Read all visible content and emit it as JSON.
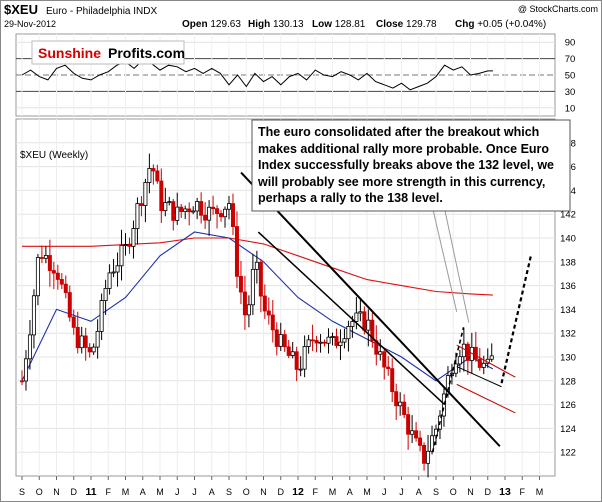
{
  "header": {
    "symbol": "$XEU",
    "name": "Euro - Philadelphia INDX",
    "date": "29-Nov-2012",
    "credit": "@ StockCharts.com",
    "quote": [
      {
        "label": "Open",
        "value": "129.63"
      },
      {
        "label": "High",
        "value": "130.13"
      },
      {
        "label": "Low",
        "value": "128.81"
      },
      {
        "label": "Close",
        "value": "129.78"
      },
      {
        "label": "Chg",
        "value": "+0.05 (+0.04%)"
      }
    ]
  },
  "logo": {
    "part1": "Sunshine",
    "part2": "Profits.com"
  },
  "rsi_panel": {
    "levels": [
      90,
      70,
      50,
      30,
      10
    ],
    "ylim": [
      0,
      100
    ],
    "highlight_lines": [
      70,
      30
    ],
    "midline": 50
  },
  "price_panel": {
    "label": "$XEU (Weekly)",
    "annotation": "The euro  consolidated after the breakout which makes additional rally more probable. Once Euro Index successfully breaks above the 132 level, we will probably see more strength in this currency, perhaps a rally to the 138 level.",
    "colors": {
      "up": "#000000",
      "down": "#cc0000",
      "ma_fast": "#1f2fb0",
      "ma_slow": "#dd1111",
      "trend": "#000000",
      "channel": "#cc0000"
    }
  },
  "chart_data": {
    "type": "candlestick",
    "title": "$XEU Euro - Philadelphia INDX (Weekly)",
    "x_months": [
      "S",
      "O",
      "N",
      "D",
      "11",
      "F",
      "M",
      "A",
      "M",
      "J",
      "J",
      "A",
      "S",
      "O",
      "N",
      "D",
      "12",
      "F",
      "M",
      "A",
      "M",
      "J",
      "J",
      "A",
      "S",
      "O",
      "N",
      "D",
      "13",
      "F",
      "M"
    ],
    "ylim": [
      120,
      150
    ],
    "yticks": [
      122,
      124,
      126,
      128,
      130,
      132,
      134,
      136,
      138,
      140,
      142,
      144,
      146,
      148
    ],
    "anchors": [
      {
        "m": 0,
        "v": 128
      },
      {
        "m": 0.5,
        "v": 133
      },
      {
        "m": 1,
        "v": 139
      },
      {
        "m": 2,
        "v": 137.5
      },
      {
        "m": 3,
        "v": 132
      },
      {
        "m": 4,
        "v": 130
      },
      {
        "m": 4.5,
        "v": 133
      },
      {
        "m": 5,
        "v": 137
      },
      {
        "m": 6,
        "v": 139
      },
      {
        "m": 7,
        "v": 144
      },
      {
        "m": 7.5,
        "v": 146.5
      },
      {
        "m": 8,
        "v": 143
      },
      {
        "m": 9,
        "v": 142
      },
      {
        "m": 10,
        "v": 143
      },
      {
        "m": 11,
        "v": 142
      },
      {
        "m": 12,
        "v": 143
      },
      {
        "m": 12.5,
        "v": 137
      },
      {
        "m": 13,
        "v": 133
      },
      {
        "m": 13.5,
        "v": 138
      },
      {
        "m": 14,
        "v": 134
      },
      {
        "m": 15,
        "v": 131
      },
      {
        "m": 16,
        "v": 129
      },
      {
        "m": 17,
        "v": 132
      },
      {
        "m": 18,
        "v": 131
      },
      {
        "m": 19,
        "v": 133
      },
      {
        "m": 20,
        "v": 133
      },
      {
        "m": 21,
        "v": 129
      },
      {
        "m": 22,
        "v": 125.5
      },
      {
        "m": 23,
        "v": 122
      },
      {
        "m": 23.3,
        "v": 121.5
      },
      {
        "m": 24,
        "v": 124
      },
      {
        "m": 25,
        "v": 130
      },
      {
        "m": 25.5,
        "v": 131
      },
      {
        "m": 26,
        "v": 130
      },
      {
        "m": 27,
        "v": 129
      },
      {
        "m": 27.3,
        "v": 130
      }
    ],
    "ma_fast": [
      {
        "m": 0,
        "v": 128
      },
      {
        "m": 2,
        "v": 134
      },
      {
        "m": 4,
        "v": 133
      },
      {
        "m": 6,
        "v": 135
      },
      {
        "m": 8,
        "v": 138.5
      },
      {
        "m": 10,
        "v": 140.5
      },
      {
        "m": 12,
        "v": 140
      },
      {
        "m": 14,
        "v": 138
      },
      {
        "m": 16,
        "v": 135
      },
      {
        "m": 18,
        "v": 133
      },
      {
        "m": 20,
        "v": 131.5
      },
      {
        "m": 22,
        "v": 130
      },
      {
        "m": 24,
        "v": 128
      },
      {
        "m": 25,
        "v": 129
      },
      {
        "m": 26,
        "v": 130
      },
      {
        "m": 27.3,
        "v": 129
      }
    ],
    "ma_slow": [
      {
        "m": 0,
        "v": 139.3
      },
      {
        "m": 4,
        "v": 139.3
      },
      {
        "m": 8,
        "v": 139.6
      },
      {
        "m": 10,
        "v": 140
      },
      {
        "m": 12,
        "v": 140
      },
      {
        "m": 14,
        "v": 139.5
      },
      {
        "m": 16,
        "v": 138.5
      },
      {
        "m": 18,
        "v": 137.5
      },
      {
        "m": 20,
        "v": 136.5
      },
      {
        "m": 22,
        "v": 136
      },
      {
        "m": 24,
        "v": 135.5
      },
      {
        "m": 26,
        "v": 135.3
      },
      {
        "m": 27.3,
        "v": 135.2
      }
    ],
    "rsi": [
      {
        "m": 0,
        "v": 50
      },
      {
        "m": 0.5,
        "v": 56
      },
      {
        "m": 1,
        "v": 48
      },
      {
        "m": 1.5,
        "v": 44
      },
      {
        "m": 2,
        "v": 58
      },
      {
        "m": 2.5,
        "v": 62
      },
      {
        "m": 3,
        "v": 52
      },
      {
        "m": 3.5,
        "v": 46
      },
      {
        "m": 4,
        "v": 44
      },
      {
        "m": 4.5,
        "v": 50
      },
      {
        "m": 5,
        "v": 54
      },
      {
        "m": 5.5,
        "v": 62
      },
      {
        "m": 6,
        "v": 66
      },
      {
        "m": 6.5,
        "v": 58
      },
      {
        "m": 7,
        "v": 68
      },
      {
        "m": 7.5,
        "v": 64
      },
      {
        "m": 8,
        "v": 56
      },
      {
        "m": 8.5,
        "v": 62
      },
      {
        "m": 9,
        "v": 60
      },
      {
        "m": 9.5,
        "v": 54
      },
      {
        "m": 10,
        "v": 58
      },
      {
        "m": 10.5,
        "v": 52
      },
      {
        "m": 11,
        "v": 58
      },
      {
        "m": 11.5,
        "v": 52
      },
      {
        "m": 12,
        "v": 38
      },
      {
        "m": 12.5,
        "v": 50
      },
      {
        "m": 13,
        "v": 36
      },
      {
        "m": 13.5,
        "v": 52
      },
      {
        "m": 14,
        "v": 42
      },
      {
        "m": 14.5,
        "v": 48
      },
      {
        "m": 15,
        "v": 38
      },
      {
        "m": 15.5,
        "v": 48
      },
      {
        "m": 16,
        "v": 52
      },
      {
        "m": 16.5,
        "v": 44
      },
      {
        "m": 17,
        "v": 56
      },
      {
        "m": 17.5,
        "v": 50
      },
      {
        "m": 18,
        "v": 48
      },
      {
        "m": 18.5,
        "v": 54
      },
      {
        "m": 19,
        "v": 50
      },
      {
        "m": 19.5,
        "v": 44
      },
      {
        "m": 20,
        "v": 52
      },
      {
        "m": 20.5,
        "v": 42
      },
      {
        "m": 21,
        "v": 38
      },
      {
        "m": 21.5,
        "v": 34
      },
      {
        "m": 22,
        "v": 40
      },
      {
        "m": 22.5,
        "v": 32
      },
      {
        "m": 23,
        "v": 36
      },
      {
        "m": 23.5,
        "v": 40
      },
      {
        "m": 24,
        "v": 48
      },
      {
        "m": 24.5,
        "v": 62
      },
      {
        "m": 25,
        "v": 56
      },
      {
        "m": 25.5,
        "v": 60
      },
      {
        "m": 26,
        "v": 50
      },
      {
        "m": 26.5,
        "v": 52
      },
      {
        "m": 27,
        "v": 55
      },
      {
        "m": 27.3,
        "v": 55
      }
    ],
    "trendlines": [
      {
        "name": "downtrend-upper",
        "style": "solid",
        "width": 2,
        "from": {
          "m": 12.7,
          "v": 145.5
        },
        "to": {
          "m": 27.7,
          "v": 122.5
        }
      },
      {
        "name": "downtrend-lower",
        "style": "solid",
        "width": 1.5,
        "from": {
          "m": 13.7,
          "v": 140.5
        },
        "to": {
          "m": 24.5,
          "v": 126
        }
      },
      {
        "name": "channel-top",
        "style": "solid",
        "width": 1,
        "color": "channel",
        "from": {
          "m": 25.2,
          "v": 131
        },
        "to": {
          "m": 28.6,
          "v": 128.3
        }
      },
      {
        "name": "channel-bottom",
        "style": "solid",
        "width": 1,
        "color": "channel",
        "from": {
          "m": 25.2,
          "v": 127.7
        },
        "to": {
          "m": 28.6,
          "v": 125.3
        }
      },
      {
        "name": "channel-mid-support",
        "style": "solid",
        "width": 1,
        "color": "trend",
        "from": {
          "m": 25.2,
          "v": 129.2
        },
        "to": {
          "m": 27.8,
          "v": 127.5
        }
      },
      {
        "name": "rally-up-1",
        "style": "dashed",
        "width": 1.6,
        "from": {
          "m": 23.8,
          "v": 122
        },
        "to": {
          "m": 25.6,
          "v": 132.5
        }
      },
      {
        "name": "rally-up-2",
        "style": "dashed",
        "width": 2.2,
        "from": {
          "m": 27.8,
          "v": 127.8
        },
        "to": {
          "m": 29.5,
          "v": 138.5
        }
      },
      {
        "name": "annotation-pointer-1",
        "style": "solid",
        "width": 1,
        "color": "#9a9a9a",
        "from": {
          "m": 23.6,
          "v": 143.8
        },
        "to": {
          "m": 25.2,
          "v": 133.8
        }
      },
      {
        "name": "annotation-pointer-2",
        "style": "solid",
        "width": 1,
        "color": "#9a9a9a",
        "from": {
          "m": 24.3,
          "v": 143.8
        },
        "to": {
          "m": 25.9,
          "v": 132.9
        }
      }
    ]
  }
}
